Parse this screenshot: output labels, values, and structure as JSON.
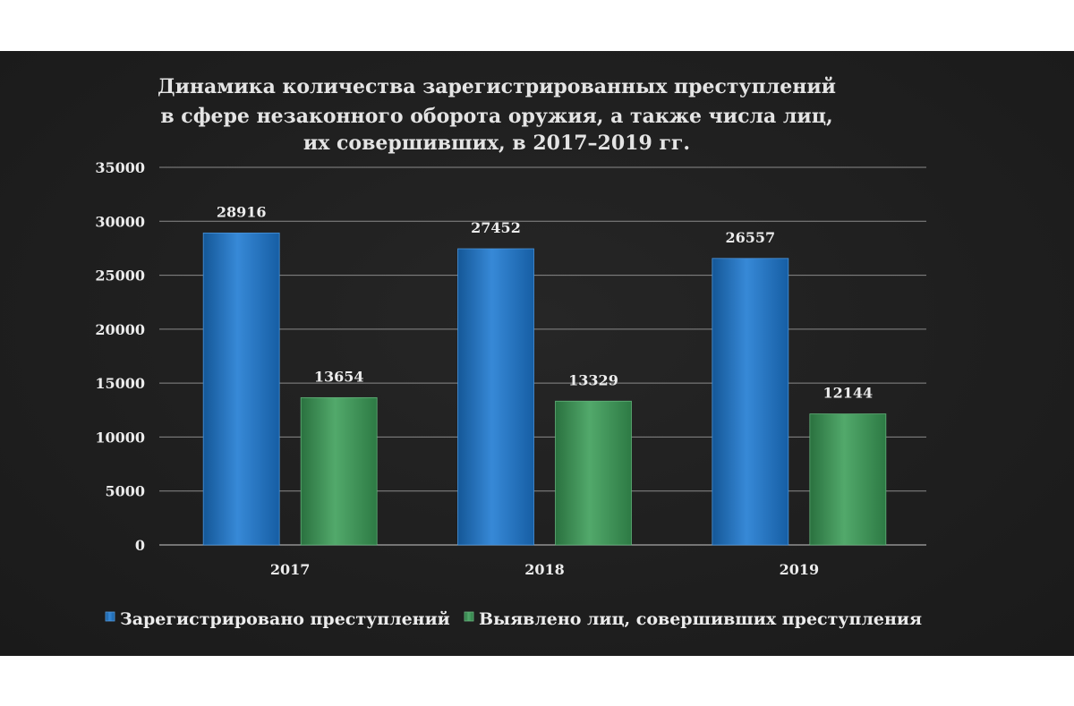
{
  "chart_data": {
    "type": "bar",
    "title_lines": [
      "Динамика количества зарегистрированных преступлений",
      "в сфере незаконного оборота оружия, а также числа лиц,",
      "их совершивших, в 2017–2019 гг."
    ],
    "categories": [
      "2017",
      "2018",
      "2019"
    ],
    "series": [
      {
        "name": "Зарегистрировано преступлений",
        "values": [
          28916,
          27452,
          26557
        ],
        "color": "#1c79d2"
      },
      {
        "name": "Выявлено лиц, совершивших преступления",
        "values": [
          13654,
          13329,
          12144
        ],
        "color": "#3a9d57"
      }
    ],
    "xlabel": "",
    "ylabel": "",
    "ylim": [
      0,
      35000
    ],
    "yticks": [
      0,
      5000,
      10000,
      15000,
      20000,
      25000,
      30000,
      35000
    ],
    "grid": true,
    "legend": "bottom",
    "data_labels": true
  },
  "colors": {
    "background": "#1f1f1f",
    "text": "#ececec",
    "grid": "#8a8a8a"
  }
}
